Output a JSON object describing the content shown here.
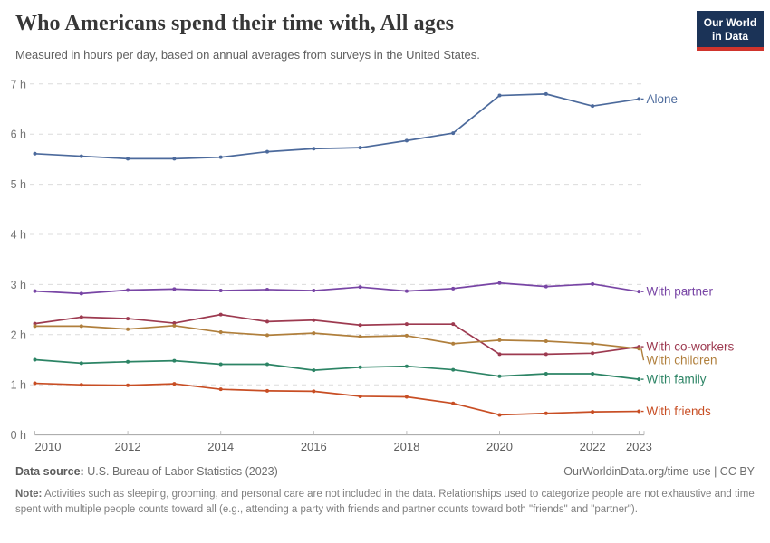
{
  "header": {
    "title": "Who Americans spend their time with, All ages",
    "subtitle": "Measured in hours per day, based on annual averages from surveys in the United States.",
    "logo_line1": "Our World",
    "logo_line2": "in Data",
    "logo_colors": {
      "background": "#1b3357",
      "underline": "#d0342c"
    }
  },
  "chart_data": {
    "type": "line",
    "x": [
      2010,
      2011,
      2012,
      2013,
      2014,
      2015,
      2016,
      2017,
      2018,
      2019,
      2020,
      2021,
      2022,
      2023
    ],
    "series": [
      {
        "name": "Alone",
        "color": "#4C6A9C",
        "values": [
          5.61,
          5.56,
          5.51,
          5.51,
          5.54,
          5.65,
          5.71,
          5.73,
          5.87,
          6.02,
          6.77,
          6.8,
          6.56,
          6.7
        ]
      },
      {
        "name": "With partner",
        "color": "#7845A5",
        "values": [
          2.87,
          2.82,
          2.89,
          2.91,
          2.88,
          2.9,
          2.88,
          2.95,
          2.87,
          2.92,
          3.03,
          2.96,
          3.01,
          2.86
        ]
      },
      {
        "name": "With co-workers",
        "color": "#9D3A50",
        "values": [
          2.22,
          2.35,
          2.32,
          2.23,
          2.4,
          2.26,
          2.29,
          2.19,
          2.21,
          2.21,
          1.61,
          1.61,
          1.63,
          1.76
        ]
      },
      {
        "name": "With children",
        "color": "#B07F3C",
        "values": [
          2.17,
          2.17,
          2.11,
          2.18,
          2.05,
          1.99,
          2.03,
          1.96,
          1.98,
          1.82,
          1.89,
          1.87,
          1.82,
          1.72
        ]
      },
      {
        "name": "With family",
        "color": "#2C8465",
        "values": [
          1.5,
          1.43,
          1.46,
          1.48,
          1.41,
          1.41,
          1.29,
          1.35,
          1.37,
          1.3,
          1.17,
          1.22,
          1.22,
          1.11
        ]
      },
      {
        "name": "With friends",
        "color": "#C84E24",
        "values": [
          1.03,
          1.0,
          0.99,
          1.02,
          0.91,
          0.88,
          0.87,
          0.77,
          0.76,
          0.63,
          0.4,
          0.43,
          0.46,
          0.47
        ]
      }
    ],
    "title": "Who Americans spend their time with, All ages",
    "xlabel": "",
    "ylabel": "hours per day",
    "yticks": [
      0,
      1,
      2,
      3,
      4,
      5,
      6,
      7
    ],
    "ytick_suffix": " h",
    "xticks": [
      2010,
      2012,
      2014,
      2016,
      2018,
      2020,
      2022,
      2023
    ],
    "ylim": [
      0,
      7
    ],
    "grid": "horizontal-dashed",
    "legend_position": "right-of-line-labels"
  },
  "footer": {
    "datasource_label": "Data source:",
    "datasource": "U.S. Bureau of Labor Statistics (2023)",
    "link": "OurWorldinData.org/time-use | CC BY",
    "note_label": "Note:",
    "note": "Activities such as sleeping, grooming, and personal care are not included in the data. Relationships used to categorize people are not exhaustive and time spent with multiple people counts toward all (e.g., attending a party with friends and partner counts toward both \"friends\" and \"partner\")."
  }
}
